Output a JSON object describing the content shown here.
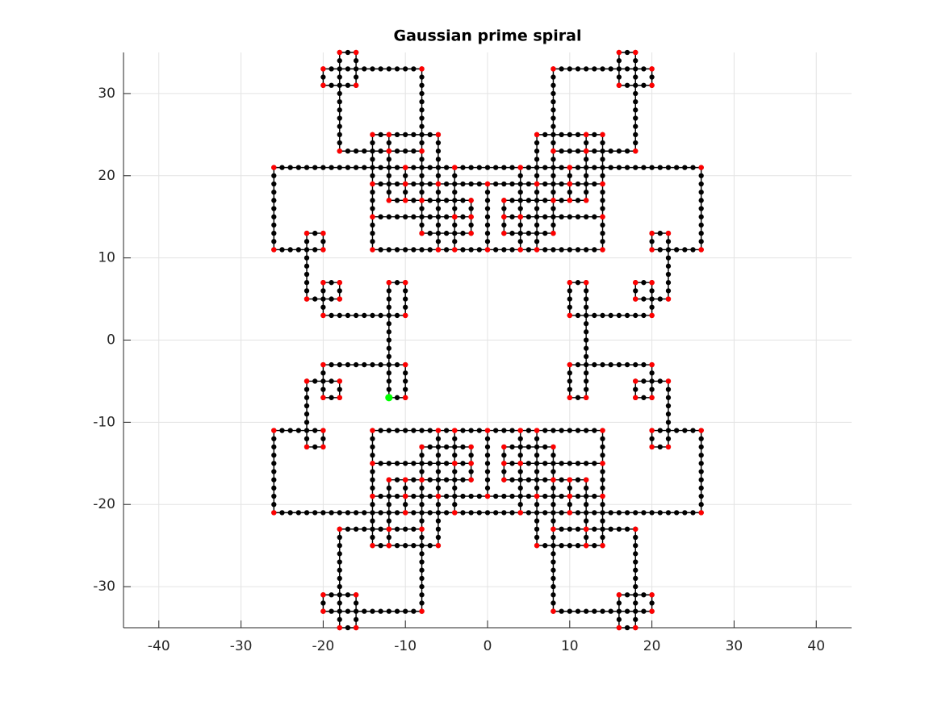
{
  "chart_data": {
    "type": "line",
    "title": "Gaussian prime spiral",
    "x": [
      -12,
      -10,
      -10,
      -20,
      -20,
      -18,
      -18,
      -22,
      -22,
      -20,
      -20,
      -26,
      -26,
      -10,
      -10,
      -14,
      -14,
      -12,
      -12,
      -18,
      -18,
      -16,
      -16,
      -20,
      -20,
      -8,
      -8,
      -12,
      -12,
      -6,
      -6,
      -10,
      -10,
      -4,
      -4,
      -14,
      -14,
      -10,
      -10,
      -12,
      -12,
      -8,
      -8,
      -10,
      -10,
      -6,
      -6,
      -14,
      -14,
      -4,
      -4,
      -6,
      -6,
      0,
      0,
      -4,
      -4,
      -2,
      -2,
      -8,
      -8,
      -2,
      -2,
      -4,
      -4,
      4,
      4,
      2,
      2,
      8,
      8,
      2,
      2,
      4,
      4,
      0,
      0,
      6,
      6,
      4,
      4,
      14,
      14,
      6,
      6,
      10,
      10,
      8,
      8,
      12,
      12,
      10,
      10,
      14,
      14,
      4,
      4,
      10,
      10,
      6,
      6,
      12,
      12,
      8,
      8,
      20,
      20,
      16,
      16,
      18,
      18,
      12,
      12,
      14,
      14,
      10,
      10,
      26,
      26,
      20,
      20,
      22,
      22,
      18,
      18,
      20,
      20,
      10,
      10,
      12,
      12,
      10,
      10,
      20,
      20,
      18,
      18,
      22,
      22,
      20,
      20,
      26,
      26,
      10,
      10,
      14,
      14,
      12,
      12,
      18,
      18,
      16,
      16,
      20,
      20,
      8,
      8,
      12,
      12,
      6,
      6,
      10,
      10,
      4,
      4,
      14,
      14,
      10,
      10,
      12,
      12,
      8,
      8,
      10,
      10,
      6,
      6,
      14,
      14,
      4,
      4,
      6,
      6,
      0,
      0,
      4,
      4,
      2,
      2,
      8,
      8,
      2,
      2,
      4,
      4,
      -4,
      -4,
      -2,
      -2,
      -8,
      -8,
      -2,
      -2,
      -4,
      -4,
      0,
      0,
      -6,
      -6,
      -4,
      -4,
      -14,
      -14,
      -6,
      -6,
      -10,
      -10,
      -8,
      -8,
      -12,
      -12,
      -10,
      -10,
      -14,
      -14,
      -4,
      -4,
      -10,
      -10,
      -6,
      -6,
      -12,
      -12,
      -8,
      -8,
      -20,
      -20,
      -16,
      -16,
      -18,
      -18,
      -12,
      -12,
      -14,
      -14,
      -10,
      -10,
      -26,
      -26,
      -20,
      -20,
      -22,
      -22,
      -18,
      -18,
      -20,
      -20,
      -10,
      -10,
      -12,
      -12
    ],
    "y": [
      -7,
      -7,
      -3,
      -3,
      -7,
      -7,
      -5,
      -5,
      -13,
      -13,
      -11,
      -11,
      -21,
      -21,
      -19,
      -19,
      -25,
      -25,
      -23,
      -23,
      -35,
      -35,
      -31,
      -31,
      -33,
      -33,
      -23,
      -23,
      -25,
      -25,
      -19,
      -19,
      -21,
      -21,
      -15,
      -15,
      -19,
      -19,
      -17,
      -17,
      -23,
      -23,
      -17,
      -17,
      -19,
      -19,
      -11,
      -11,
      -15,
      -15,
      -11,
      -11,
      -19,
      -19,
      -11,
      -11,
      -15,
      -15,
      -13,
      -13,
      -17,
      -17,
      -15,
      -15,
      -21,
      -21,
      -15,
      -15,
      -17,
      -17,
      -13,
      -13,
      -15,
      -15,
      -11,
      -11,
      -19,
      -19,
      -11,
      -11,
      -15,
      -15,
      -11,
      -11,
      -19,
      -19,
      -17,
      -17,
      -23,
      -23,
      -17,
      -17,
      -19,
      -19,
      -15,
      -15,
      -21,
      -21,
      -19,
      -19,
      -25,
      -25,
      -23,
      -23,
      -33,
      -33,
      -31,
      -31,
      -35,
      -35,
      -23,
      -23,
      -25,
      -25,
      -19,
      -19,
      -21,
      -21,
      -11,
      -11,
      -13,
      -13,
      -5,
      -5,
      -7,
      -7,
      -3,
      -3,
      -7,
      -7,
      7,
      7,
      3,
      3,
      7,
      7,
      5,
      5,
      13,
      13,
      11,
      11,
      21,
      21,
      19,
      19,
      25,
      25,
      23,
      23,
      35,
      35,
      31,
      31,
      33,
      33,
      23,
      23,
      25,
      25,
      19,
      19,
      21,
      21,
      15,
      15,
      19,
      19,
      17,
      17,
      23,
      23,
      17,
      17,
      19,
      19,
      11,
      11,
      15,
      15,
      11,
      11,
      19,
      19,
      11,
      11,
      15,
      15,
      13,
      13,
      17,
      17,
      15,
      15,
      21,
      21,
      15,
      15,
      17,
      17,
      13,
      13,
      15,
      15,
      11,
      11,
      19,
      19,
      11,
      11,
      15,
      15,
      11,
      11,
      19,
      19,
      17,
      17,
      23,
      23,
      17,
      17,
      19,
      19,
      15,
      15,
      21,
      21,
      19,
      19,
      25,
      25,
      23,
      23,
      33,
      33,
      31,
      31,
      35,
      35,
      23,
      23,
      25,
      25,
      19,
      19,
      21,
      21,
      11,
      11,
      13,
      13,
      5,
      5,
      7,
      7,
      3,
      3,
      7,
      7,
      -7
    ],
    "color": "#000000",
    "marker_color": "#ff0000",
    "start_color": "#00ff00",
    "xlim": [
      -44.3,
      44.3
    ],
    "ylim": [
      -35,
      35
    ],
    "xticks": [
      -40,
      -30,
      -20,
      -10,
      0,
      10,
      20,
      30,
      40
    ],
    "yticks": [
      -30,
      -20,
      -10,
      0,
      10,
      20,
      30
    ],
    "grid": true
  }
}
